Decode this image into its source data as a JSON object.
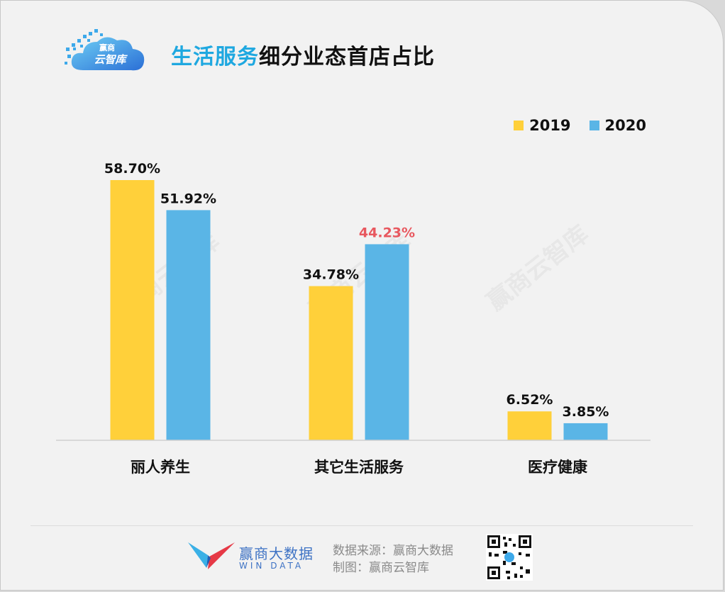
{
  "logo": {
    "line1": "赢商",
    "line2": "云智库",
    "icon": "cloud-pixel-logo"
  },
  "title": {
    "highlight": "生活服务",
    "rest": "细分业态首店占比"
  },
  "watermark_text": "赢商云智库",
  "colors": {
    "series2019": "#ffd03a",
    "series2020": "#5ab5e6",
    "highlight_label": "#e8585f",
    "title_accent": "#1fa8e0"
  },
  "chart_data": {
    "type": "bar",
    "title": "生活服务细分业态首店占比",
    "categories": [
      "丽人养生",
      "其它生活服务",
      "医疗健康"
    ],
    "series": [
      {
        "name": "2019",
        "values": [
          58.7,
          34.78,
          6.52
        ],
        "labels": [
          "58.70%",
          "34.78%",
          "6.52%"
        ]
      },
      {
        "name": "2020",
        "values": [
          51.92,
          44.23,
          3.85
        ],
        "labels": [
          "51.92%",
          "44.23%",
          "3.85%"
        ]
      }
    ],
    "highlighted_label": {
      "series": 1,
      "index": 1
    },
    "ylim": [
      0,
      58.7
    ],
    "grid": false,
    "legend_position": "top-right"
  },
  "footer": {
    "brand_name": "赢商大数据",
    "brand_en": "WIN DATA",
    "source_line": "数据来源：赢商大数据",
    "made_by_line": "制图：赢商云智库",
    "qr_icon": "qr-code-icon"
  }
}
